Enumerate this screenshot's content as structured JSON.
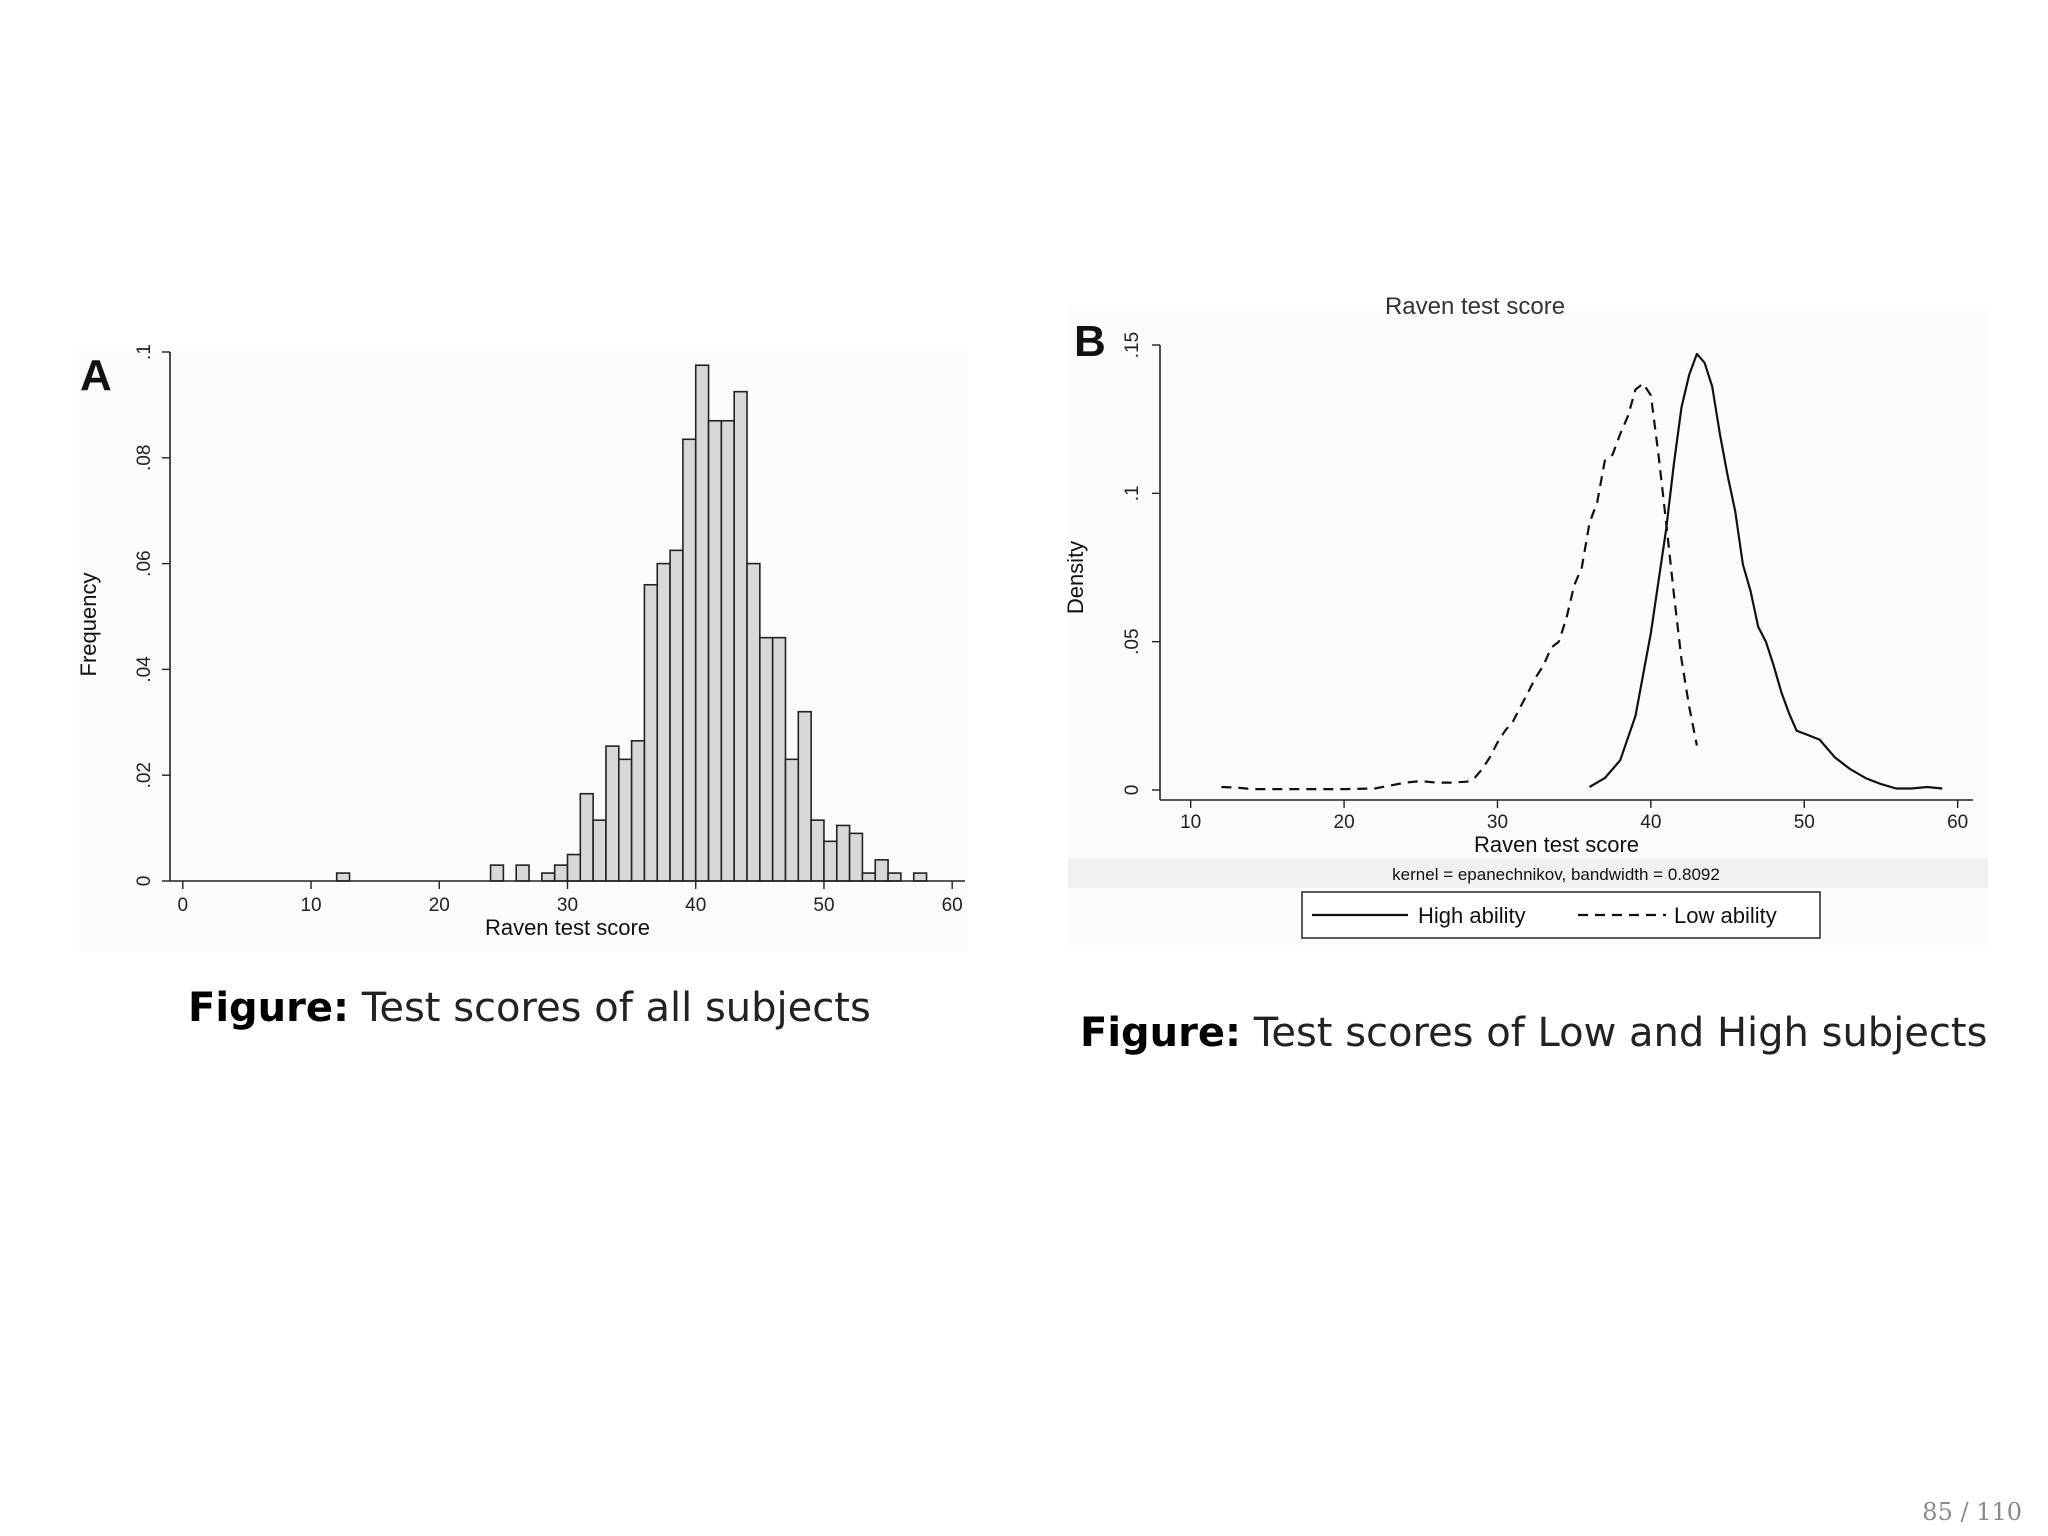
{
  "slide": {
    "page_number": "85 / 110"
  },
  "figure_a": {
    "letter": "A",
    "caption_prefix": "Figure:",
    "caption_text": "Test scores of all subjects"
  },
  "figure_b": {
    "letter": "B",
    "cut_title": "Raven test score",
    "note": "kernel = epanechnikov, bandwidth = 0.8092",
    "caption_prefix": "Figure:",
    "caption_text": "Test scores of Low and High subjects"
  },
  "chart_data": [
    {
      "type": "bar",
      "subtype": "histogram",
      "xlabel": "Raven test score",
      "ylabel": "Frequency",
      "xlim": [
        -1,
        61
      ],
      "ylim": [
        0,
        0.1
      ],
      "xticks": [
        0,
        10,
        20,
        30,
        40,
        50,
        60
      ],
      "xtick_labels": [
        "0",
        "10",
        "20",
        "30",
        "40",
        "50",
        "60"
      ],
      "yticks": [
        0,
        0.02,
        0.04,
        0.06,
        0.08,
        0.1
      ],
      "ytick_labels": [
        "0",
        ".02",
        ".04",
        ".06",
        ".08",
        ".1"
      ],
      "bin_width": 1,
      "bins": [
        {
          "x": 12,
          "value": 0.0015
        },
        {
          "x": 24,
          "value": 0.003
        },
        {
          "x": 26,
          "value": 0.003
        },
        {
          "x": 28,
          "value": 0.0015
        },
        {
          "x": 29,
          "value": 0.003
        },
        {
          "x": 30,
          "value": 0.005
        },
        {
          "x": 31,
          "value": 0.0165
        },
        {
          "x": 32,
          "value": 0.0115
        },
        {
          "x": 33,
          "value": 0.0255
        },
        {
          "x": 34,
          "value": 0.023
        },
        {
          "x": 35,
          "value": 0.0265
        },
        {
          "x": 36,
          "value": 0.056
        },
        {
          "x": 37,
          "value": 0.06
        },
        {
          "x": 38,
          "value": 0.0625
        },
        {
          "x": 39,
          "value": 0.0835
        },
        {
          "x": 40,
          "value": 0.0975
        },
        {
          "x": 41,
          "value": 0.087
        },
        {
          "x": 42,
          "value": 0.087
        },
        {
          "x": 43,
          "value": 0.0925
        },
        {
          "x": 44,
          "value": 0.06
        },
        {
          "x": 45,
          "value": 0.046
        },
        {
          "x": 46,
          "value": 0.046
        },
        {
          "x": 47,
          "value": 0.023
        },
        {
          "x": 48,
          "value": 0.032
        },
        {
          "x": 49,
          "value": 0.0115
        },
        {
          "x": 50,
          "value": 0.0075
        },
        {
          "x": 51,
          "value": 0.0105
        },
        {
          "x": 52,
          "value": 0.009
        },
        {
          "x": 53,
          "value": 0.0015
        },
        {
          "x": 54,
          "value": 0.004
        },
        {
          "x": 55,
          "value": 0.0015
        },
        {
          "x": 57,
          "value": 0.0015
        }
      ]
    },
    {
      "type": "line",
      "subtype": "kernel-density",
      "xlabel": "Raven test score",
      "ylabel": "Density",
      "xlim": [
        8,
        61
      ],
      "ylim": [
        0,
        0.15
      ],
      "xticks": [
        10,
        20,
        30,
        40,
        50,
        60
      ],
      "xtick_labels": [
        "10",
        "20",
        "30",
        "40",
        "50",
        "60"
      ],
      "yticks": [
        0,
        0.05,
        0.1,
        0.15
      ],
      "ytick_labels": [
        "0",
        ".05",
        ".1",
        ".15"
      ],
      "legend_position": "bottom",
      "series": [
        {
          "name": "High ability",
          "style": "solid",
          "x": [
            36,
            37,
            38,
            39,
            40,
            41,
            41.5,
            42,
            42.5,
            43,
            43.5,
            44,
            44.5,
            45,
            45.5,
            46,
            46.5,
            47,
            47.5,
            48,
            48.5,
            49,
            49.5,
            50,
            51,
            52,
            53,
            54,
            55,
            56,
            57,
            58,
            59
          ],
          "y": [
            0.001,
            0.004,
            0.01,
            0.025,
            0.053,
            0.088,
            0.11,
            0.129,
            0.14,
            0.147,
            0.144,
            0.136,
            0.12,
            0.106,
            0.094,
            0.076,
            0.067,
            0.055,
            0.05,
            0.042,
            0.033,
            0.026,
            0.02,
            0.019,
            0.017,
            0.011,
            0.007,
            0.004,
            0.002,
            0.0005,
            0.0005,
            0.001,
            0.0005
          ]
        },
        {
          "name": "Low ability",
          "style": "dashed",
          "x": [
            12,
            13,
            14,
            16,
            18,
            20,
            22,
            23,
            24,
            25,
            26,
            27,
            28,
            28.5,
            29,
            29.5,
            30,
            30.5,
            31,
            31.5,
            32,
            32.5,
            33,
            33.5,
            34,
            34.5,
            35,
            35.5,
            36,
            36.5,
            37,
            37.5,
            38,
            38.5,
            39,
            39.5,
            40,
            40.5,
            41,
            41.5,
            42,
            42.5,
            43
          ],
          "y": [
            0.001,
            0.0008,
            0.0003,
            0.0003,
            0.0003,
            0.0003,
            0.0005,
            0.0015,
            0.0025,
            0.003,
            0.0025,
            0.0025,
            0.0028,
            0.004,
            0.007,
            0.011,
            0.016,
            0.02,
            0.023,
            0.028,
            0.033,
            0.038,
            0.042,
            0.048,
            0.05,
            0.058,
            0.069,
            0.075,
            0.09,
            0.097,
            0.111,
            0.113,
            0.12,
            0.126,
            0.135,
            0.137,
            0.133,
            0.113,
            0.09,
            0.066,
            0.044,
            0.028,
            0.015
          ]
        }
      ]
    }
  ]
}
